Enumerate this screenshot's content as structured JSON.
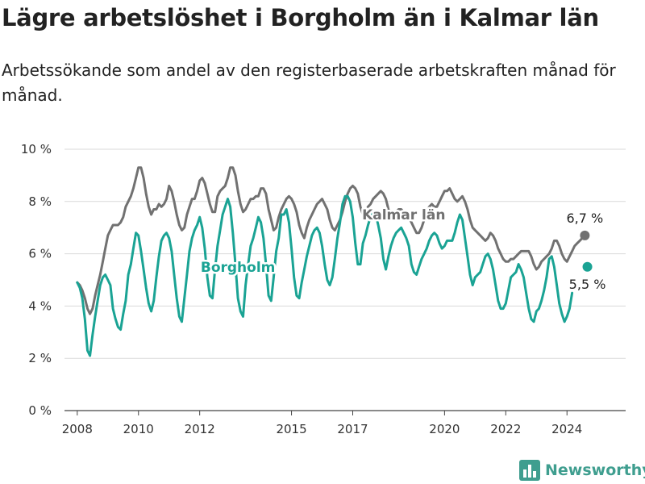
{
  "header": {
    "title": "Lägre arbetslöshet i Borgholm än i Kalmar län",
    "subtitle": "Arbetssökande som andel av den registerbaserade arbetskraften månad för månad."
  },
  "brand": {
    "name": "Newsworthy",
    "icon": "bar-chart-logo-icon",
    "color": "#3f9e8f"
  },
  "chart_data": {
    "type": "line",
    "title": "",
    "xlabel": "",
    "ylabel": "",
    "x_start": "2008-01",
    "x_end": "2024-11",
    "xlim": [
      "2007-08",
      "2025-12"
    ],
    "ylim": [
      0,
      10
    ],
    "y_ticks": [
      0,
      2,
      4,
      6,
      8,
      10
    ],
    "y_tick_labels": [
      "0 %",
      "2 %",
      "4 %",
      "6 %",
      "8 %",
      "10 %"
    ],
    "x_ticks": [
      "2008-01",
      "2010-01",
      "2012-01",
      "2015-01",
      "2017-01",
      "2020-01",
      "2022-01",
      "2024-01"
    ],
    "x_tick_labels": [
      "2008",
      "2010",
      "2012",
      "2015",
      "2017",
      "2020",
      "2022",
      "2024"
    ],
    "grid": true,
    "legend": "none (direct labels)",
    "series": [
      {
        "name": "Kalmar län",
        "color": "#717171",
        "end_label": "6,7 %",
        "values": [
          4.9,
          4.8,
          4.6,
          4.3,
          3.9,
          3.7,
          3.9,
          4.4,
          4.8,
          5.2,
          5.7,
          6.2,
          6.7,
          6.9,
          7.1,
          7.1,
          7.1,
          7.2,
          7.4,
          7.8,
          8.0,
          8.2,
          8.5,
          8.9,
          9.3,
          9.3,
          8.9,
          8.3,
          7.8,
          7.5,
          7.7,
          7.7,
          7.9,
          7.8,
          7.9,
          8.1,
          8.6,
          8.4,
          8.0,
          7.5,
          7.1,
          6.9,
          7.0,
          7.5,
          7.8,
          8.1,
          8.1,
          8.4,
          8.8,
          8.9,
          8.7,
          8.3,
          7.9,
          7.6,
          7.6,
          8.2,
          8.4,
          8.5,
          8.6,
          8.9,
          9.3,
          9.3,
          9.0,
          8.4,
          7.9,
          7.6,
          7.7,
          7.9,
          8.1,
          8.1,
          8.2,
          8.2,
          8.5,
          8.5,
          8.3,
          7.7,
          7.3,
          6.9,
          7.0,
          7.4,
          7.7,
          7.9,
          8.1,
          8.2,
          8.1,
          7.9,
          7.6,
          7.1,
          6.8,
          6.6,
          7.0,
          7.3,
          7.5,
          7.7,
          7.9,
          8.0,
          8.1,
          7.9,
          7.7,
          7.3,
          7.0,
          6.9,
          7.1,
          7.3,
          7.6,
          8.0,
          8.3,
          8.5,
          8.6,
          8.5,
          8.3,
          7.8,
          7.5,
          7.6,
          7.8,
          7.9,
          8.1,
          8.2,
          8.3,
          8.4,
          8.3,
          8.1,
          7.7,
          7.4,
          7.4,
          7.6,
          7.7,
          7.7,
          7.6,
          7.5,
          7.4,
          7.2,
          7.0,
          6.8,
          6.8,
          7.0,
          7.3,
          7.6,
          7.8,
          7.9,
          7.8,
          7.8,
          8.0,
          8.2,
          8.4,
          8.4,
          8.5,
          8.3,
          8.1,
          8.0,
          8.1,
          8.2,
          8.0,
          7.7,
          7.3,
          7.0,
          6.9,
          6.8,
          6.7,
          6.6,
          6.5,
          6.6,
          6.8,
          6.7,
          6.5,
          6.2,
          6.0,
          5.8,
          5.7,
          5.7,
          5.8,
          5.8,
          5.9,
          6.0,
          6.1,
          6.1,
          6.1,
          6.1,
          5.9,
          5.6,
          5.4,
          5.5,
          5.7,
          5.8,
          5.9,
          6.0,
          6.2,
          6.5,
          6.5,
          6.3,
          6.0,
          5.8,
          5.7,
          5.9,
          6.1,
          6.3,
          6.4,
          6.5,
          6.6,
          6.7
        ]
      },
      {
        "name": "Borgholm",
        "color": "#1aa394",
        "end_label": "5,5 %",
        "values": [
          4.9,
          4.7,
          4.3,
          3.5,
          2.3,
          2.1,
          2.9,
          3.6,
          4.2,
          4.8,
          5.1,
          5.2,
          5.0,
          4.8,
          3.9,
          3.5,
          3.2,
          3.1,
          3.7,
          4.2,
          5.2,
          5.6,
          6.2,
          6.8,
          6.7,
          6.1,
          5.4,
          4.7,
          4.1,
          3.8,
          4.2,
          5.1,
          5.9,
          6.5,
          6.7,
          6.8,
          6.6,
          6.1,
          5.2,
          4.3,
          3.6,
          3.4,
          4.3,
          5.2,
          6.1,
          6.6,
          6.9,
          7.1,
          7.4,
          7.0,
          6.2,
          5.1,
          4.4,
          4.3,
          5.4,
          6.3,
          6.9,
          7.5,
          7.8,
          8.1,
          7.8,
          6.8,
          5.6,
          4.3,
          3.8,
          3.6,
          4.8,
          5.6,
          6.3,
          6.6,
          7.0,
          7.4,
          7.2,
          6.6,
          5.6,
          4.4,
          4.2,
          5.1,
          6.1,
          6.6,
          7.5,
          7.5,
          7.7,
          7.2,
          6.2,
          5.1,
          4.4,
          4.3,
          4.9,
          5.4,
          5.9,
          6.3,
          6.7,
          6.9,
          7.0,
          6.8,
          6.3,
          5.6,
          5.0,
          4.8,
          5.1,
          5.8,
          6.6,
          7.2,
          7.9,
          8.2,
          8.2,
          8.0,
          7.4,
          6.4,
          5.6,
          5.6,
          6.4,
          6.7,
          7.1,
          7.4,
          7.6,
          7.5,
          7.1,
          6.6,
          5.8,
          5.4,
          5.9,
          6.3,
          6.6,
          6.8,
          6.9,
          7.0,
          6.8,
          6.6,
          6.3,
          5.6,
          5.3,
          5.2,
          5.5,
          5.8,
          6.0,
          6.2,
          6.5,
          6.7,
          6.8,
          6.7,
          6.4,
          6.2,
          6.3,
          6.5,
          6.5,
          6.5,
          6.8,
          7.2,
          7.5,
          7.3,
          6.6,
          5.9,
          5.2,
          4.8,
          5.1,
          5.2,
          5.3,
          5.6,
          5.9,
          6.0,
          5.8,
          5.4,
          4.8,
          4.2,
          3.9,
          3.9,
          4.1,
          4.6,
          5.1,
          5.2,
          5.3,
          5.6,
          5.4,
          5.1,
          4.5,
          3.9,
          3.5,
          3.4,
          3.8,
          3.9,
          4.2,
          4.6,
          5.1,
          5.8,
          5.9,
          5.5,
          4.8,
          4.1,
          3.7,
          3.4,
          3.6,
          3.9,
          4.5,
          null,
          null,
          null,
          null,
          null,
          5.5
        ]
      }
    ],
    "annotations": [
      {
        "text": "Kalmar län",
        "series": "Kalmar län",
        "near": "2018-09",
        "value": 7.5
      },
      {
        "text": "Borgholm",
        "series": "Borgholm",
        "near": "2013-04",
        "value": 5.5
      }
    ]
  }
}
